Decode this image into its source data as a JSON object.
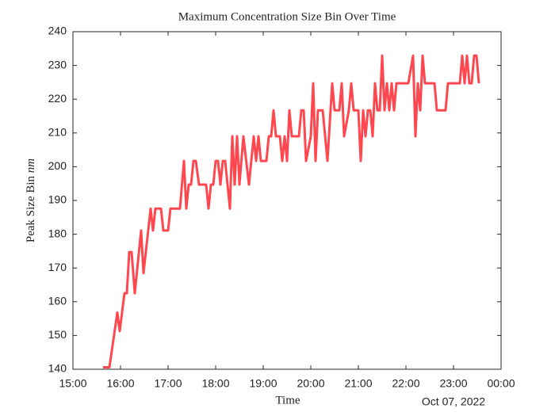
{
  "chart_data": {
    "type": "line",
    "title": "Maximum Concentration Size Bin Over Time",
    "x_label": "Time",
    "y_label": "Peak Size Bin",
    "y_label_unit": "nm",
    "x_date_label": "Oct 07, 2022",
    "xlim": [
      15,
      24
    ],
    "xticks": [
      {
        "value": 15,
        "label": "15:00"
      },
      {
        "value": 16,
        "label": "16:00"
      },
      {
        "value": 17,
        "label": "17:00"
      },
      {
        "value": 18,
        "label": "18:00"
      },
      {
        "value": 19,
        "label": "19:00"
      },
      {
        "value": 20,
        "label": "20:00"
      },
      {
        "value": 21,
        "label": "21:00"
      },
      {
        "value": 22,
        "label": "22:00"
      },
      {
        "value": 23,
        "label": "23:00"
      },
      {
        "value": 24,
        "label": "00:00"
      }
    ],
    "ylim": [
      140,
      240
    ],
    "yticks": [
      140,
      150,
      160,
      170,
      180,
      190,
      200,
      210,
      220,
      230,
      240
    ],
    "grid": false,
    "x": [
      15.633,
      15.767,
      15.933,
      15.983,
      16.083,
      16.133,
      16.183,
      16.233,
      16.3,
      16.433,
      16.483,
      16.633,
      16.683,
      16.733,
      16.85,
      16.9,
      17.0,
      17.05,
      17.25,
      17.333,
      17.383,
      17.433,
      17.483,
      17.533,
      17.583,
      17.65,
      17.8,
      17.85,
      17.9,
      17.95,
      18.0,
      18.05,
      18.1,
      18.15,
      18.2,
      18.3,
      18.35,
      18.4,
      18.45,
      18.5,
      18.583,
      18.7,
      18.8,
      18.85,
      18.9,
      18.95,
      19.067,
      19.117,
      19.167,
      19.217,
      19.267,
      19.35,
      19.4,
      19.45,
      19.5,
      19.55,
      19.6,
      19.75,
      19.8,
      19.85,
      19.9,
      20.0,
      20.05,
      20.1,
      20.15,
      20.25,
      20.35,
      20.45,
      20.5,
      20.6,
      20.65,
      20.7,
      20.8,
      20.85,
      20.9,
      21.0,
      21.05,
      21.1,
      21.15,
      21.2,
      21.25,
      21.3,
      21.35,
      21.4,
      21.45,
      21.5,
      21.55,
      21.6,
      21.65,
      21.7,
      21.75,
      21.8,
      22.05,
      22.15,
      22.2,
      22.25,
      22.3,
      22.35,
      22.4,
      22.6,
      22.65,
      22.833,
      22.883,
      23.133,
      23.183,
      23.233,
      23.283,
      23.333,
      23.383,
      23.433,
      23.483,
      23.533
    ],
    "series": [
      {
        "name": "Peak Size Bin",
        "color": "#ff474f",
        "values": [
          140.6,
          140.6,
          156.8,
          151.3,
          162.5,
          162.5,
          174.7,
          174.7,
          162.5,
          181.1,
          168.5,
          187.6,
          181.1,
          187.6,
          187.6,
          181.1,
          181.1,
          187.6,
          187.6,
          201.7,
          187.6,
          194.7,
          194.7,
          201.7,
          201.7,
          194.7,
          194.7,
          187.6,
          194.7,
          194.7,
          201.7,
          201.7,
          194.7,
          201.7,
          201.7,
          187.6,
          209.0,
          194.7,
          209.0,
          194.7,
          209.0,
          194.7,
          209.0,
          201.7,
          209.0,
          201.7,
          201.7,
          209.0,
          209.0,
          216.7,
          209.0,
          209.0,
          201.7,
          209.0,
          201.7,
          216.7,
          209.0,
          209.0,
          216.7,
          216.7,
          201.7,
          209.0,
          224.7,
          201.7,
          216.7,
          216.7,
          201.7,
          224.7,
          216.7,
          216.7,
          224.7,
          209.0,
          216.7,
          224.7,
          216.7,
          216.7,
          201.7,
          216.7,
          209.0,
          216.7,
          216.7,
          209.0,
          224.7,
          216.7,
          216.7,
          232.9,
          216.7,
          224.7,
          216.7,
          224.7,
          216.7,
          224.7,
          224.7,
          232.9,
          209.0,
          224.7,
          216.7,
          232.9,
          224.7,
          224.7,
          216.7,
          216.7,
          224.7,
          224.7,
          232.9,
          224.7,
          232.9,
          224.7,
          224.7,
          232.9,
          232.9,
          224.7
        ]
      }
    ]
  }
}
